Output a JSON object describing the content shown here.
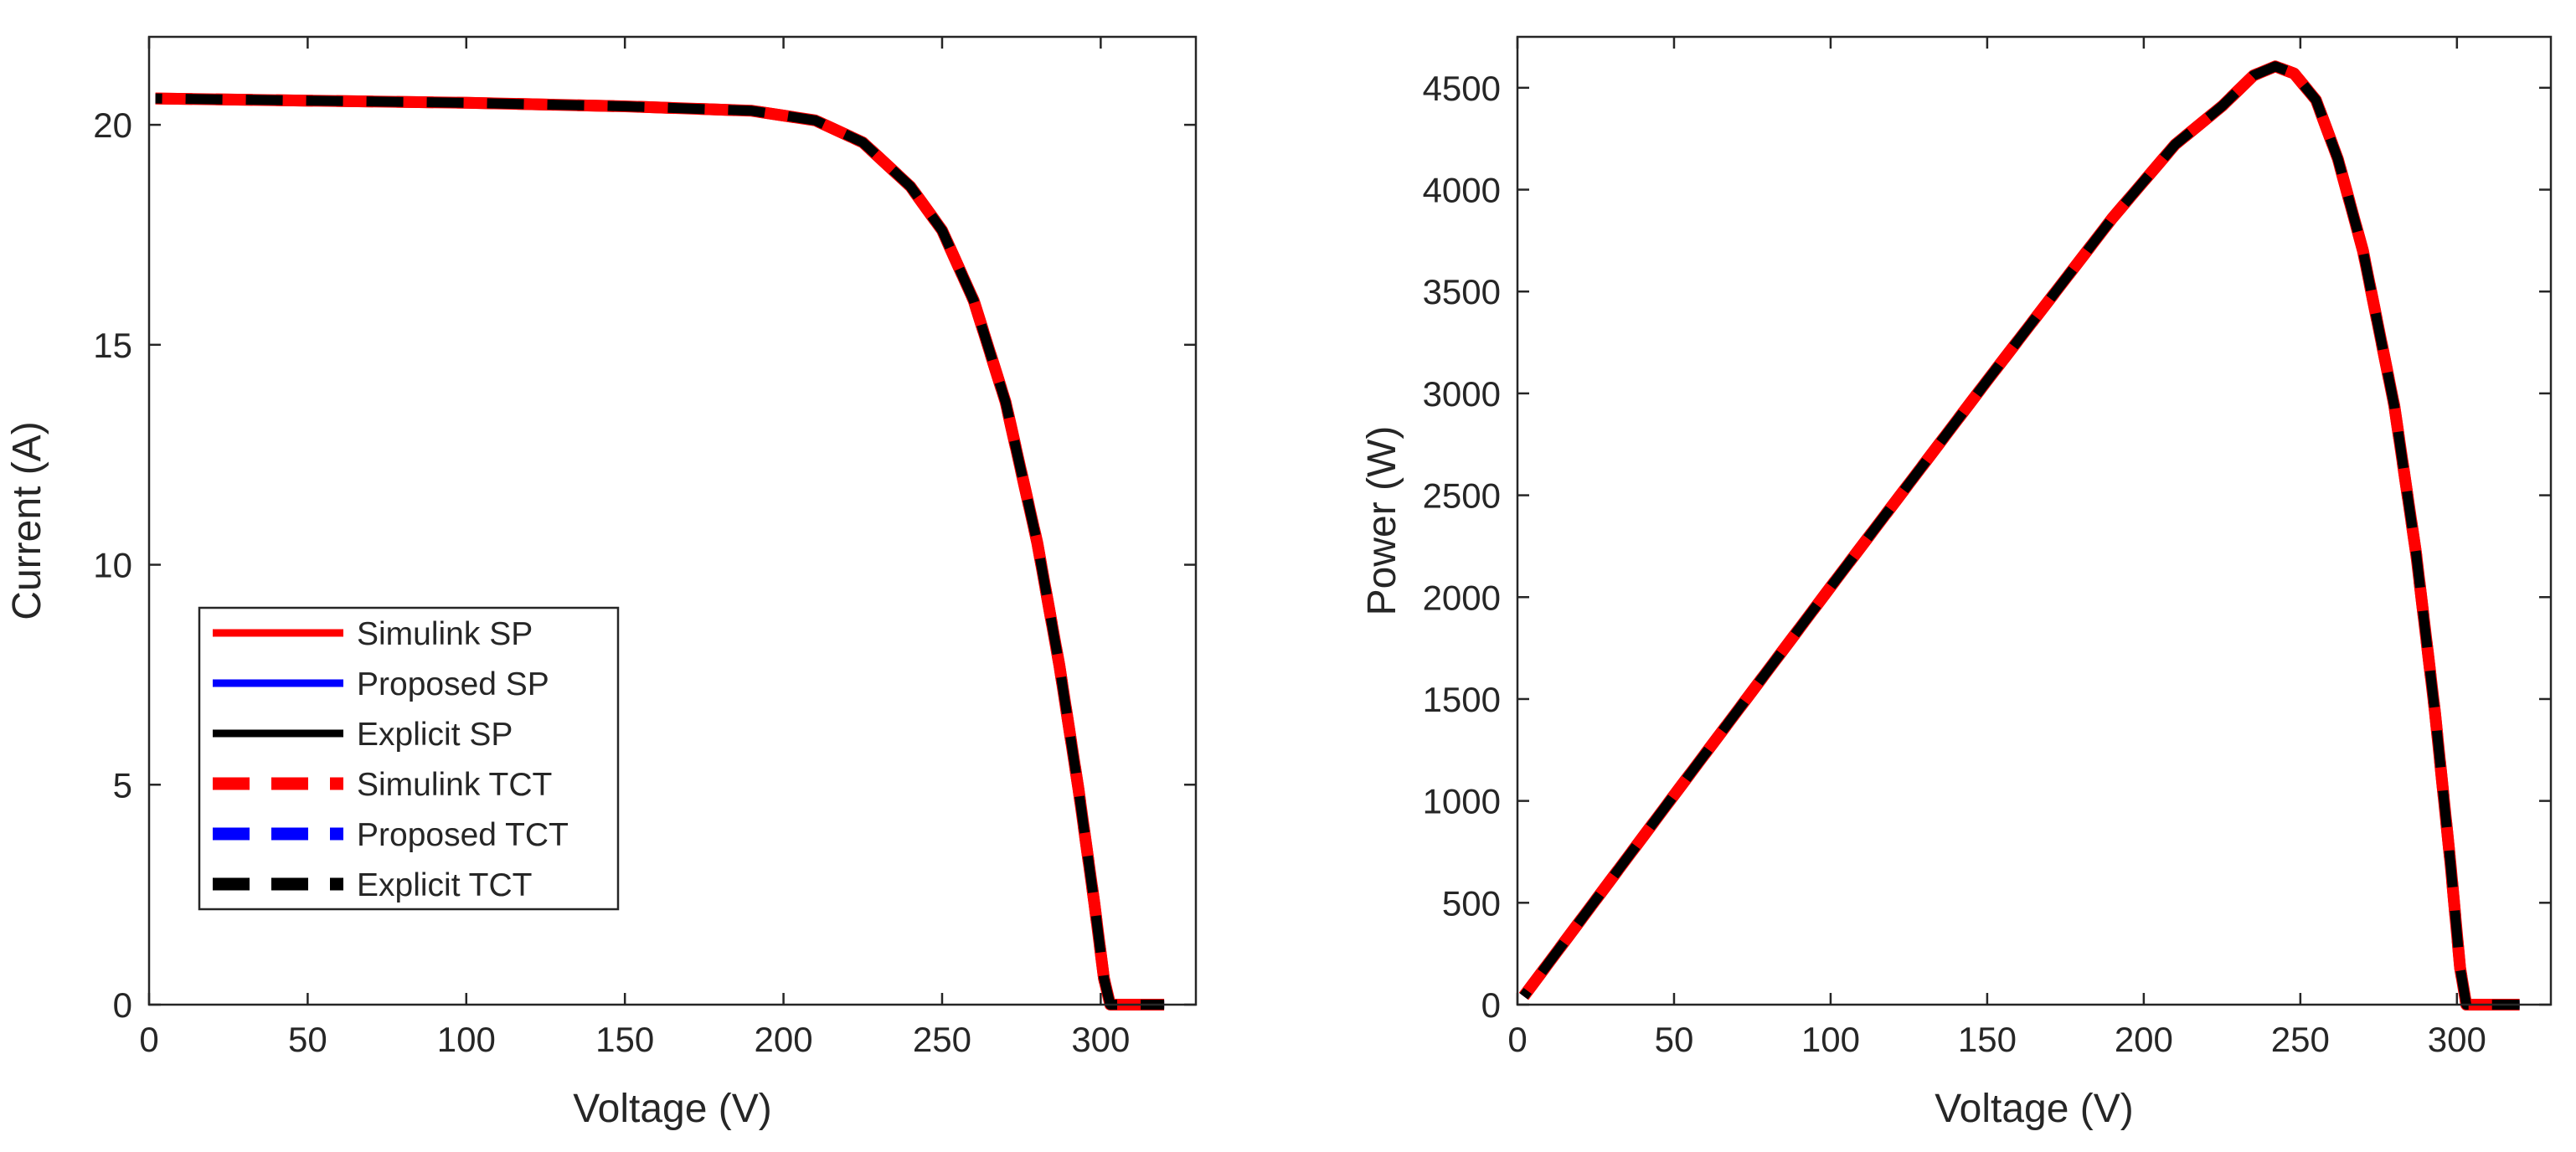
{
  "chart_data": [
    {
      "type": "line",
      "xlabel": "Voltage (V)",
      "ylabel": "Current (A)",
      "xlim": [
        0,
        330
      ],
      "ylim": [
        0,
        22
      ],
      "xticks": [
        0,
        50,
        100,
        150,
        200,
        250,
        300
      ],
      "yticks": [
        0,
        5,
        10,
        15,
        20
      ],
      "grid": false,
      "legend": {
        "placement": "lower-left"
      },
      "x": [
        2,
        50,
        100,
        150,
        190,
        210,
        225,
        240,
        250,
        260,
        270,
        280,
        287,
        293,
        298,
        301,
        303,
        310,
        320
      ],
      "series": [
        {
          "name": "Simulink SP",
          "color": "#ff0000",
          "style": "solid",
          "values": [
            20.6,
            20.55,
            20.5,
            20.42,
            20.32,
            20.1,
            19.6,
            18.6,
            17.6,
            16.0,
            13.7,
            10.5,
            7.7,
            4.9,
            2.3,
            0.6,
            0,
            0,
            0
          ]
        },
        {
          "name": "Proposed SP",
          "color": "#0000ff",
          "style": "solid",
          "values": [
            20.6,
            20.55,
            20.5,
            20.42,
            20.32,
            20.1,
            19.6,
            18.6,
            17.6,
            16.0,
            13.7,
            10.5,
            7.7,
            4.9,
            2.3,
            0.6,
            0,
            0,
            0
          ]
        },
        {
          "name": "Explicit SP",
          "color": "#000000",
          "style": "solid",
          "values": [
            20.6,
            20.55,
            20.5,
            20.42,
            20.32,
            20.1,
            19.6,
            18.6,
            17.6,
            16.0,
            13.7,
            10.5,
            7.7,
            4.9,
            2.3,
            0.6,
            0,
            0,
            0
          ]
        },
        {
          "name": "Simulink TCT",
          "color": "#ff0000",
          "style": "dashed",
          "values": [
            20.6,
            20.55,
            20.5,
            20.42,
            20.32,
            20.1,
            19.6,
            18.6,
            17.6,
            16.0,
            13.7,
            10.5,
            7.7,
            4.9,
            2.3,
            0.6,
            0,
            0,
            0
          ]
        },
        {
          "name": "Proposed TCT",
          "color": "#0000ff",
          "style": "dashed",
          "values": [
            20.6,
            20.55,
            20.5,
            20.42,
            20.32,
            20.1,
            19.6,
            18.6,
            17.6,
            16.0,
            13.7,
            10.5,
            7.7,
            4.9,
            2.3,
            0.6,
            0,
            0,
            0
          ]
        },
        {
          "name": "Explicit TCT",
          "color": "#000000",
          "style": "dashed",
          "values": [
            20.6,
            20.55,
            20.5,
            20.42,
            20.32,
            20.1,
            19.6,
            18.6,
            17.6,
            16.0,
            13.7,
            10.5,
            7.7,
            4.9,
            2.3,
            0.6,
            0,
            0,
            0
          ]
        }
      ]
    },
    {
      "type": "line",
      "xlabel": "Voltage (V)",
      "ylabel": "Power (W)",
      "xlim": [
        0,
        330
      ],
      "ylim": [
        0,
        4750
      ],
      "xticks": [
        0,
        50,
        100,
        150,
        200,
        250,
        300
      ],
      "yticks": [
        0,
        500,
        1000,
        1500,
        2000,
        2500,
        3000,
        3500,
        4000,
        4500
      ],
      "grid": false,
      "x": [
        2,
        50,
        100,
        150,
        190,
        210,
        225,
        235,
        242,
        248,
        255,
        262,
        270,
        280,
        287,
        293,
        298,
        301,
        303,
        310,
        320
      ],
      "series": [
        {
          "name": "Simulink SP",
          "color": "#ff0000",
          "style": "solid",
          "values": [
            41,
            1028,
            2050,
            3063,
            3861,
            4221,
            4410,
            4560,
            4605,
            4570,
            4440,
            4150,
            3700,
            2940,
            2210,
            1435,
            685,
            180,
            0,
            0,
            0
          ]
        },
        {
          "name": "Proposed SP",
          "color": "#0000ff",
          "style": "solid",
          "values": [
            41,
            1028,
            2050,
            3063,
            3861,
            4221,
            4410,
            4560,
            4605,
            4570,
            4440,
            4150,
            3700,
            2940,
            2210,
            1435,
            685,
            180,
            0,
            0,
            0
          ]
        },
        {
          "name": "Explicit SP",
          "color": "#000000",
          "style": "solid",
          "values": [
            41,
            1028,
            2050,
            3063,
            3861,
            4221,
            4410,
            4560,
            4605,
            4570,
            4440,
            4150,
            3700,
            2940,
            2210,
            1435,
            685,
            180,
            0,
            0,
            0
          ]
        },
        {
          "name": "Simulink TCT",
          "color": "#ff0000",
          "style": "dashed",
          "values": [
            41,
            1028,
            2050,
            3063,
            3861,
            4221,
            4410,
            4560,
            4605,
            4570,
            4440,
            4150,
            3700,
            2940,
            2210,
            1435,
            685,
            180,
            0,
            0,
            0
          ]
        },
        {
          "name": "Proposed TCT",
          "color": "#0000ff",
          "style": "dashed",
          "values": [
            41,
            1028,
            2050,
            3063,
            3861,
            4221,
            4410,
            4560,
            4605,
            4570,
            4440,
            4150,
            3700,
            2940,
            2210,
            1435,
            685,
            180,
            0,
            0,
            0
          ]
        },
        {
          "name": "Explicit TCT",
          "color": "#000000",
          "style": "dashed",
          "values": [
            41,
            1028,
            2050,
            3063,
            3861,
            4221,
            4410,
            4560,
            4605,
            4570,
            4440,
            4150,
            3700,
            2940,
            2210,
            1435,
            685,
            180,
            0,
            0,
            0
          ]
        }
      ]
    }
  ]
}
